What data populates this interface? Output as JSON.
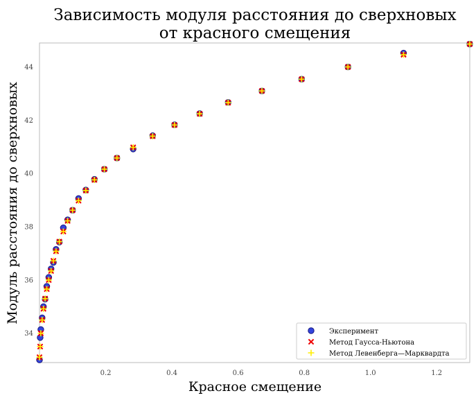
{
  "chart_data": {
    "type": "scatter",
    "title_lines": [
      "Зависимость модуля расстояния до сверхновых",
      "от красного смещения"
    ],
    "xlabel": "Красное смещение",
    "ylabel": "Модуль расстояния до сверхновых",
    "xlim": [
      0.0,
      1.3
    ],
    "ylim": [
      32.9,
      44.9
    ],
    "xticks": [
      0.2,
      0.4,
      0.6,
      0.8,
      1.0,
      1.2
    ],
    "xtick_labels": [
      "0.2",
      "0.4",
      "0.6",
      "0.8",
      "1.0",
      "1.2"
    ],
    "yticks": [
      34,
      36,
      38,
      40,
      42,
      44
    ],
    "ytick_labels": [
      "34",
      "36",
      "38",
      "40",
      "42",
      "44"
    ],
    "grid": false,
    "legend_position": "lower-right",
    "series": [
      {
        "name": "Эксперимент",
        "marker": "circle",
        "color": "#3344dd",
        "edge": "#1a1a80",
        "points": [
          [
            0.0,
            33.0
          ],
          [
            0.002,
            33.84
          ],
          [
            0.004,
            34.14
          ],
          [
            0.008,
            34.58
          ],
          [
            0.012,
            35.0
          ],
          [
            0.017,
            35.28
          ],
          [
            0.022,
            35.76
          ],
          [
            0.028,
            36.1
          ],
          [
            0.035,
            36.42
          ],
          [
            0.042,
            36.66
          ],
          [
            0.05,
            37.15
          ],
          [
            0.06,
            37.42
          ],
          [
            0.072,
            37.96
          ],
          [
            0.085,
            38.26
          ],
          [
            0.1,
            38.62
          ],
          [
            0.118,
            39.06
          ],
          [
            0.14,
            39.38
          ],
          [
            0.166,
            39.78
          ],
          [
            0.196,
            40.16
          ],
          [
            0.234,
            40.58
          ],
          [
            0.283,
            40.92
          ],
          [
            0.342,
            41.42
          ],
          [
            0.408,
            41.83
          ],
          [
            0.484,
            42.25
          ],
          [
            0.57,
            42.67
          ],
          [
            0.672,
            43.1
          ],
          [
            0.792,
            43.54
          ],
          [
            0.932,
            44.0
          ],
          [
            1.1,
            44.52
          ],
          [
            1.3,
            44.86
          ]
        ]
      },
      {
        "name": "Метод Гаусса-Ньютона",
        "marker": "x",
        "color": "#ee0000",
        "points": [
          [
            0.0,
            33.1
          ],
          [
            0.002,
            33.5
          ],
          [
            0.004,
            34.0
          ],
          [
            0.008,
            34.5
          ],
          [
            0.012,
            34.92
          ],
          [
            0.017,
            35.3
          ],
          [
            0.022,
            35.66
          ],
          [
            0.028,
            36.0
          ],
          [
            0.035,
            36.34
          ],
          [
            0.042,
            36.72
          ],
          [
            0.05,
            37.08
          ],
          [
            0.06,
            37.44
          ],
          [
            0.072,
            37.82
          ],
          [
            0.085,
            38.22
          ],
          [
            0.1,
            38.62
          ],
          [
            0.118,
            38.98
          ],
          [
            0.14,
            39.36
          ],
          [
            0.166,
            39.76
          ],
          [
            0.196,
            40.16
          ],
          [
            0.234,
            40.58
          ],
          [
            0.283,
            40.98
          ],
          [
            0.342,
            41.4
          ],
          [
            0.408,
            41.82
          ],
          [
            0.484,
            42.24
          ],
          [
            0.57,
            42.66
          ],
          [
            0.672,
            43.1
          ],
          [
            0.792,
            43.54
          ],
          [
            0.932,
            44.0
          ],
          [
            1.1,
            44.46
          ],
          [
            1.3,
            44.86
          ]
        ]
      },
      {
        "name": "Метод Левенберга—Марквардта",
        "marker": "plus",
        "color": "#ffee00",
        "points": [
          [
            0.0,
            33.1
          ],
          [
            0.002,
            33.5
          ],
          [
            0.004,
            34.0
          ],
          [
            0.008,
            34.5
          ],
          [
            0.012,
            34.92
          ],
          [
            0.017,
            35.3
          ],
          [
            0.022,
            35.66
          ],
          [
            0.028,
            36.0
          ],
          [
            0.035,
            36.34
          ],
          [
            0.042,
            36.72
          ],
          [
            0.05,
            37.08
          ],
          [
            0.06,
            37.44
          ],
          [
            0.072,
            37.82
          ],
          [
            0.085,
            38.22
          ],
          [
            0.1,
            38.62
          ],
          [
            0.118,
            38.98
          ],
          [
            0.14,
            39.36
          ],
          [
            0.166,
            39.76
          ],
          [
            0.196,
            40.16
          ],
          [
            0.234,
            40.58
          ],
          [
            0.283,
            40.98
          ],
          [
            0.342,
            41.4
          ],
          [
            0.408,
            41.82
          ],
          [
            0.484,
            42.24
          ],
          [
            0.57,
            42.66
          ],
          [
            0.672,
            43.1
          ],
          [
            0.792,
            43.54
          ],
          [
            0.932,
            44.0
          ],
          [
            1.1,
            44.46
          ],
          [
            1.3,
            44.86
          ]
        ]
      }
    ]
  }
}
